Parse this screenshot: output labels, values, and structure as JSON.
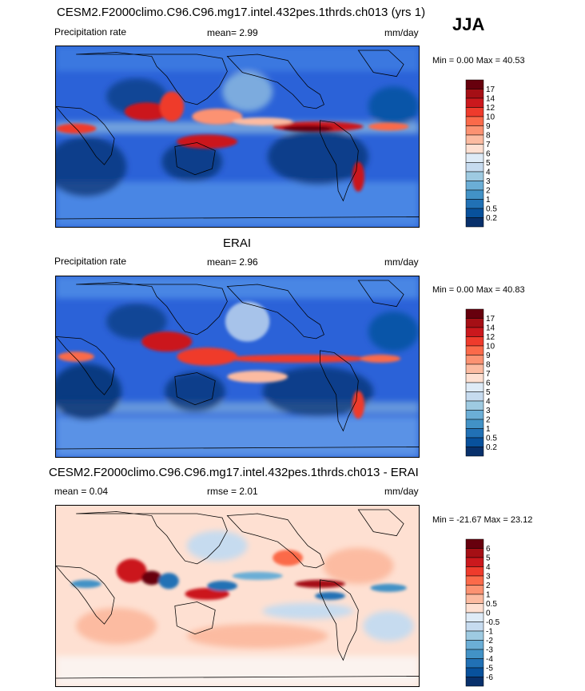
{
  "season": "JJA",
  "panels": [
    {
      "id": "model",
      "title": "CESM2.F2000climo.C96.C96.mg17.intel.432pes.1thrds.ch013 (yrs 1)",
      "left_label": "Precipitation rate",
      "center_label": "mean=  2.99",
      "units": "mm/day",
      "minmax": "Min =   0.00 Max =  40.53",
      "colorbar_labels": [
        "17",
        "14",
        "12",
        "10",
        "9",
        "8",
        "7",
        "6",
        "5",
        "4",
        "3",
        "2",
        "1",
        "0.5",
        "0.2"
      ]
    },
    {
      "id": "obs",
      "title": "ERAI",
      "left_label": "Precipitation rate",
      "center_label": "mean=  2.96",
      "units": "mm/day",
      "minmax": "Min =   0.00 Max =  40.83",
      "colorbar_labels": [
        "17",
        "14",
        "12",
        "10",
        "9",
        "8",
        "7",
        "6",
        "5",
        "4",
        "3",
        "2",
        "1",
        "0.5",
        "0.2"
      ]
    },
    {
      "id": "diff",
      "title": "CESM2.F2000climo.C96.C96.mg17.intel.432pes.1thrds.ch013 - ERAI",
      "left_label": "mean =   0.04",
      "center_label": "rmse =   2.01",
      "units": "mm/day",
      "minmax": "Min = -21.67 Max =  23.12",
      "colorbar_labels": [
        "6",
        "5",
        "4",
        "3",
        "2",
        "1",
        "0.5",
        "0",
        "-0.5",
        "-1",
        "-2",
        "-3",
        "-4",
        "-5",
        "-6"
      ]
    }
  ],
  "colors": {
    "precip_scale": [
      "#67000d",
      "#a50f15",
      "#cb181d",
      "#ef3b2c",
      "#fb6a4a",
      "#fc9272",
      "#fcbba1",
      "#fee0d2",
      "#deebf7",
      "#c6dbef",
      "#9ecae1",
      "#6baed6",
      "#4292c6",
      "#2171b5",
      "#08519c",
      "#08306b"
    ],
    "diff_scale": [
      "#67000d",
      "#a50f15",
      "#cb181d",
      "#ef3b2c",
      "#fb6a4a",
      "#fc9272",
      "#fcbba1",
      "#fee0d2",
      "#deebf7",
      "#c6dbef",
      "#9ecae1",
      "#6baed6",
      "#4292c6",
      "#2171b5",
      "#08519c",
      "#08306b"
    ]
  },
  "chart_data": [
    {
      "type": "heatmap",
      "title": "CESM2.F2000climo.C96.C96.mg17.intel.432pes.1thrds.ch013 (yrs 1)",
      "variable": "Precipitation rate",
      "units": "mm/day",
      "mean": 2.99,
      "min": 0.0,
      "max": 40.53,
      "contour_levels": [
        0.2,
        0.5,
        1,
        2,
        3,
        4,
        5,
        6,
        7,
        8,
        9,
        10,
        12,
        14,
        17
      ]
    },
    {
      "type": "heatmap",
      "title": "ERAI",
      "variable": "Precipitation rate",
      "units": "mm/day",
      "mean": 2.96,
      "min": 0.0,
      "max": 40.83,
      "contour_levels": [
        0.2,
        0.5,
        1,
        2,
        3,
        4,
        5,
        6,
        7,
        8,
        9,
        10,
        12,
        14,
        17
      ]
    },
    {
      "type": "heatmap",
      "title": "CESM2.F2000climo.C96.C96.mg17.intel.432pes.1thrds.ch013 - ERAI",
      "units": "mm/day",
      "mean": 0.04,
      "rmse": 2.01,
      "min": -21.67,
      "max": 23.12,
      "contour_levels": [
        -6,
        -5,
        -4,
        -3,
        -2,
        -1,
        -0.5,
        0,
        0.5,
        1,
        2,
        3,
        4,
        5,
        6
      ]
    }
  ]
}
